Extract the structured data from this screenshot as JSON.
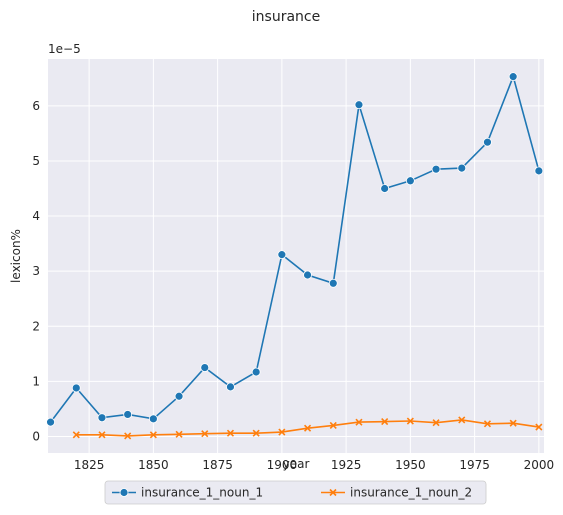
{
  "chart_data": {
    "type": "line",
    "title": "insurance",
    "xlabel": "year",
    "ylabel": "lexicon%",
    "y_scale_label": "1e−5",
    "xlim": [
      1809,
      2002
    ],
    "ylim": [
      -0.3,
      6.85
    ],
    "xticks": [
      1825,
      1850,
      1875,
      1900,
      1925,
      1950,
      1975,
      2000
    ],
    "yticks": [
      0,
      1,
      2,
      3,
      4,
      5,
      6
    ],
    "grid": true,
    "legend_position": "bottom-center",
    "series": [
      {
        "name": "insurance_1_noun_1",
        "color": "#1f77b4",
        "marker": "circle",
        "x": [
          1810,
          1820,
          1830,
          1840,
          1850,
          1860,
          1870,
          1880,
          1890,
          1900,
          1910,
          1920,
          1930,
          1940,
          1950,
          1960,
          1970,
          1980,
          1990,
          2000
        ],
        "y": [
          0.26,
          0.88,
          0.34,
          0.4,
          0.32,
          0.73,
          1.25,
          0.9,
          1.17,
          3.3,
          2.93,
          2.78,
          6.02,
          4.5,
          4.64,
          4.85,
          4.87,
          5.34,
          6.53,
          4.82
        ]
      },
      {
        "name": "insurance_1_noun_2",
        "color": "#ff7f0e",
        "marker": "x",
        "x": [
          1820,
          1830,
          1840,
          1850,
          1860,
          1870,
          1880,
          1890,
          1900,
          1910,
          1920,
          1930,
          1940,
          1950,
          1960,
          1970,
          1980,
          1990,
          2000
        ],
        "y": [
          0.03,
          0.03,
          0.01,
          0.03,
          0.04,
          0.05,
          0.06,
          0.06,
          0.08,
          0.15,
          0.2,
          0.26,
          0.27,
          0.28,
          0.25,
          0.3,
          0.23,
          0.24,
          0.17
        ]
      }
    ]
  }
}
